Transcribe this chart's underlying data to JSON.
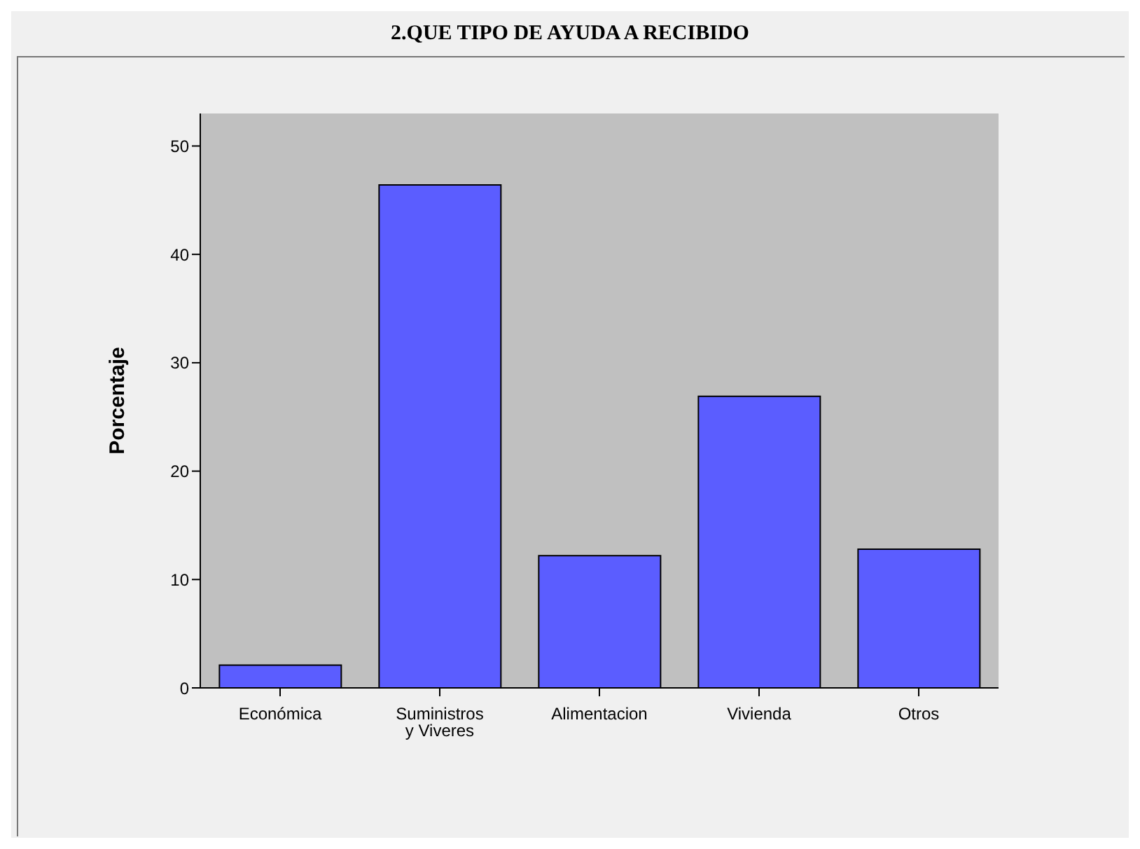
{
  "chart_data": {
    "type": "bar",
    "title": "2.QUE TIPO DE AYUDA A RECIBIDO",
    "ylabel": "Porcentaje",
    "categories": [
      "Económica",
      "Suministros y Viveres",
      "Alimentacion",
      "Vivienda",
      "Otros"
    ],
    "values": [
      2.1,
      46.4,
      12.2,
      26.9,
      12.8
    ],
    "color": "#5b5dff",
    "ylim": [
      0,
      53
    ],
    "yticks": [
      0,
      10,
      20,
      30,
      40,
      50
    ],
    "grid": false
  }
}
